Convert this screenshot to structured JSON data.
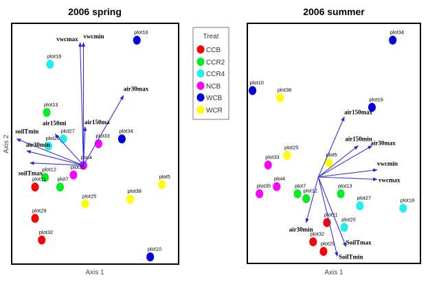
{
  "legend": {
    "title": "Treat",
    "placement": "between panels",
    "entries": [
      {
        "label": "CCB",
        "color": "#ff0000"
      },
      {
        "label": "CCR2",
        "color": "#00ee22"
      },
      {
        "label": "CCR4",
        "color": "#22eeee"
      },
      {
        "label": "NCB",
        "color": "#ff00ff"
      },
      {
        "label": "WCB",
        "color": "#0000dd"
      },
      {
        "label": "WCR",
        "color": "#ffff00"
      }
    ]
  },
  "vector_color": "#3333dd",
  "chart_data": [
    {
      "type": "scatter",
      "title": "2006 spring",
      "xlabel": "Axis 1",
      "ylabel": "Axis 2",
      "xlim": [
        0,
        100
      ],
      "ylim": [
        0,
        100
      ],
      "grid": false,
      "points": [
        {
          "label": "plot16",
          "group": "WCB",
          "x": 75,
          "y": 93
        },
        {
          "label": "plot18",
          "group": "CCR4",
          "x": 23,
          "y": 83
        },
        {
          "label": "plot13",
          "group": "CCR2",
          "x": 21,
          "y": 63
        },
        {
          "label": "plot27",
          "group": "CCR4",
          "x": 31,
          "y": 52
        },
        {
          "label": "plot20",
          "group": "CCR4",
          "x": 22,
          "y": 49
        },
        {
          "label": "plot33",
          "group": "NCB",
          "x": 52,
          "y": 50
        },
        {
          "label": "plot34",
          "group": "WCB",
          "x": 66,
          "y": 52
        },
        {
          "label": "plot4",
          "group": "NCB",
          "x": 43,
          "y": 41
        },
        {
          "label": "plot35",
          "group": "NCB",
          "x": 37,
          "y": 37
        },
        {
          "label": "plot12",
          "group": "CCR2",
          "x": 20,
          "y": 36
        },
        {
          "label": "plot7",
          "group": "CCR2",
          "x": 29,
          "y": 32
        },
        {
          "label": "plot11",
          "group": "CCB",
          "x": 14,
          "y": 32
        },
        {
          "label": "plot29",
          "group": "CCB",
          "x": 14,
          "y": 19
        },
        {
          "label": "plot32",
          "group": "CCB",
          "x": 18,
          "y": 10
        },
        {
          "label": "plot25",
          "group": "WCR",
          "x": 44,
          "y": 25
        },
        {
          "label": "plot38",
          "group": "WCR",
          "x": 71,
          "y": 27
        },
        {
          "label": "plot5",
          "group": "WCR",
          "x": 90,
          "y": 33
        },
        {
          "label": "plot10",
          "group": "WCB",
          "x": 83,
          "y": 3
        }
      ],
      "vector_origin": {
        "x": 43,
        "y": 41
      },
      "vectors": [
        {
          "label": "vwcmax",
          "x": 41,
          "y": 92
        },
        {
          "label": "vwcmin",
          "x": 43,
          "y": 92
        },
        {
          "label": "air30max",
          "x": 67,
          "y": 70
        },
        {
          "label": "air150ma",
          "x": 44,
          "y": 57
        },
        {
          "label": "air150mi",
          "x": 26,
          "y": 54
        },
        {
          "label": "soilTmin",
          "x": 3,
          "y": 52
        },
        {
          "label": "air30min",
          "x": 9,
          "y": 47
        },
        {
          "label": "soilTmax",
          "x": 11,
          "y": 42
        }
      ]
    },
    {
      "type": "scatter",
      "title": "2006 summer",
      "xlabel": "Axis 1",
      "ylabel": "",
      "xlim": [
        0,
        100
      ],
      "ylim": [
        0,
        100
      ],
      "grid": false,
      "points": [
        {
          "label": "plot34",
          "group": "WCB",
          "x": 84,
          "y": 93
        },
        {
          "label": "plot10",
          "group": "WCB",
          "x": 3,
          "y": 72
        },
        {
          "label": "plot38",
          "group": "WCR",
          "x": 19,
          "y": 69
        },
        {
          "label": "plot16",
          "group": "WCB",
          "x": 72,
          "y": 65
        },
        {
          "label": "plot25",
          "group": "WCR",
          "x": 23,
          "y": 45
        },
        {
          "label": "plot33",
          "group": "NCB",
          "x": 12,
          "y": 41
        },
        {
          "label": "plot5",
          "group": "WCR",
          "x": 47,
          "y": 42
        },
        {
          "label": "plot4",
          "group": "NCB",
          "x": 17,
          "y": 32
        },
        {
          "label": "plot35",
          "group": "NCB",
          "x": 7,
          "y": 29
        },
        {
          "label": "plot7",
          "group": "CCR2",
          "x": 29,
          "y": 29
        },
        {
          "label": "plot12",
          "group": "CCR2",
          "x": 34,
          "y": 27
        },
        {
          "label": "plot13",
          "group": "CCR2",
          "x": 54,
          "y": 29
        },
        {
          "label": "plot27",
          "group": "CCR4",
          "x": 65,
          "y": 24
        },
        {
          "label": "plot18",
          "group": "CCR4",
          "x": 90,
          "y": 23
        },
        {
          "label": "plot11",
          "group": "CCB",
          "x": 46,
          "y": 17
        },
        {
          "label": "plot20",
          "group": "CCR4",
          "x": 56,
          "y": 15
        },
        {
          "label": "plot32",
          "group": "CCB",
          "x": 38,
          "y": 9
        },
        {
          "label": "plot29",
          "group": "CCB",
          "x": 44,
          "y": 5
        }
      ],
      "vector_origin": {
        "x": 41,
        "y": 36
      },
      "vectors": [
        {
          "label": "air150max",
          "x": 56,
          "y": 61
        },
        {
          "label": "air150min",
          "x": 64,
          "y": 49
        },
        {
          "label": "air30max",
          "x": 72,
          "y": 49
        },
        {
          "label": "vwcmin",
          "x": 75,
          "y": 39
        },
        {
          "label": "vwcmax",
          "x": 75,
          "y": 35
        },
        {
          "label": "air30min",
          "x": 34,
          "y": 17
        },
        {
          "label": "SoilTmax",
          "x": 57,
          "y": 7
        },
        {
          "label": "SoilTmin",
          "x": 52,
          "y": 3
        }
      ]
    }
  ]
}
